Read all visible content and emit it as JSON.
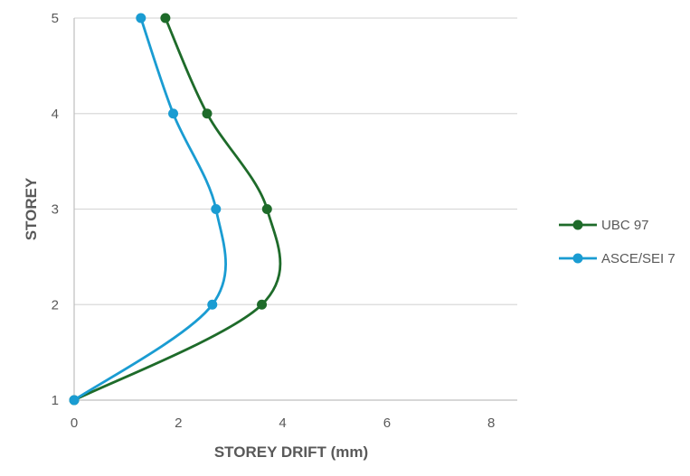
{
  "chart_data": {
    "type": "scatter",
    "xlabel": "STOREY DRIFT (mm)",
    "ylabel": "STOREY",
    "xlim": [
      0,
      8.5
    ],
    "ylim": [
      1,
      5
    ],
    "xticks": [
      0,
      2,
      4,
      6,
      8
    ],
    "yticks": [
      1,
      2,
      3,
      4,
      5
    ],
    "grid": "horizontal",
    "legend_position": "right",
    "series": [
      {
        "name": "UBC 97",
        "color": "#1e6b2a",
        "marker": "circle",
        "smooth": true,
        "x": [
          0,
          3.6,
          3.7,
          2.55,
          1.75
        ],
        "y": [
          1,
          2,
          3,
          4,
          5
        ]
      },
      {
        "name": "ASCE/SEI 7",
        "color": "#1a9cd2",
        "marker": "circle",
        "smooth": true,
        "x": [
          0,
          2.65,
          2.72,
          1.9,
          1.28
        ],
        "y": [
          1,
          2,
          3,
          4,
          5
        ]
      }
    ]
  }
}
